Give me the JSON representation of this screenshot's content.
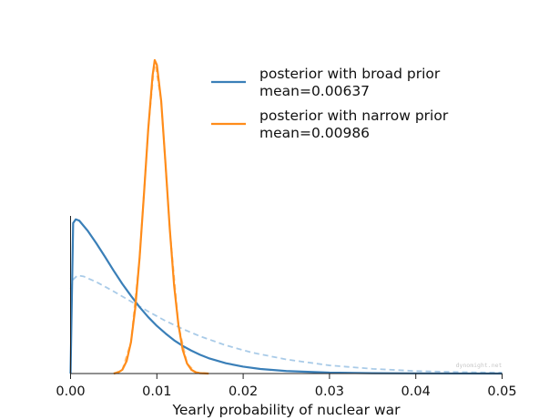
{
  "chart_data": {
    "type": "line",
    "title": "",
    "xlabel": "Yearly probability of nuclear war",
    "ylabel": "",
    "xlim": [
      0.0,
      0.05
    ],
    "ylim": [
      0,
      1
    ],
    "y_scale": "relative density (no y-axis shown)",
    "xticks": [
      "0.00",
      "0.01",
      "0.02",
      "0.03",
      "0.04",
      "0.05"
    ],
    "grid": false,
    "legend_position": "top-right",
    "series": [
      {
        "name": "posterior with broad prior\nmean=0.00637",
        "legend_line1": "posterior with broad prior",
        "legend_line2": "mean=0.00637",
        "color": "#3a7fb8",
        "style": "solid",
        "x": [
          0.0,
          0.0003,
          0.0006,
          0.001,
          0.002,
          0.003,
          0.004,
          0.005,
          0.006,
          0.007,
          0.008,
          0.009,
          0.01,
          0.011,
          0.012,
          0.013,
          0.014,
          0.015,
          0.016,
          0.018,
          0.02,
          0.022,
          0.025,
          0.03,
          0.035,
          0.04,
          0.045,
          0.05
        ],
        "y": [
          0.0,
          0.48,
          0.492,
          0.488,
          0.455,
          0.415,
          0.372,
          0.328,
          0.286,
          0.248,
          0.212,
          0.18,
          0.152,
          0.128,
          0.106,
          0.088,
          0.073,
          0.06,
          0.049,
          0.033,
          0.022,
          0.0145,
          0.008,
          0.003,
          0.0012,
          0.0005,
          0.0002,
          0.0001
        ]
      },
      {
        "name": "posterior with narrow prior\nmean=0.00986",
        "legend_line1": "posterior with narrow prior",
        "legend_line2": "mean=0.00986",
        "color": "#ff8c1a",
        "style": "solid",
        "x": [
          0.005,
          0.0055,
          0.006,
          0.0065,
          0.007,
          0.0075,
          0.008,
          0.0085,
          0.009,
          0.0095,
          0.00975,
          0.01,
          0.0105,
          0.011,
          0.0115,
          0.012,
          0.0125,
          0.013,
          0.0135,
          0.014,
          0.0145,
          0.015,
          0.016
        ],
        "y": [
          0.0,
          0.003,
          0.012,
          0.04,
          0.1,
          0.21,
          0.37,
          0.57,
          0.78,
          0.95,
          1.0,
          0.985,
          0.87,
          0.67,
          0.46,
          0.28,
          0.155,
          0.075,
          0.032,
          0.012,
          0.004,
          0.001,
          0.0
        ]
      },
      {
        "name": "",
        "color": "#a9cbe8",
        "style": "dashed",
        "x": [
          0.0,
          0.0003,
          0.0008,
          0.0015,
          0.003,
          0.005,
          0.007,
          0.009,
          0.011,
          0.013,
          0.015,
          0.018,
          0.021,
          0.025,
          0.03,
          0.035,
          0.04,
          0.045,
          0.05
        ],
        "y": [
          0.27,
          0.3,
          0.313,
          0.31,
          0.292,
          0.262,
          0.23,
          0.198,
          0.168,
          0.142,
          0.119,
          0.09,
          0.067,
          0.045,
          0.026,
          0.015,
          0.008,
          0.0045,
          0.0025
        ]
      },
      {
        "name": "",
        "color": "#ffc27d",
        "style": "dashed",
        "x": [
          0.005,
          0.006,
          0.007,
          0.008,
          0.009,
          0.00975,
          0.0105,
          0.0115,
          0.0125,
          0.0135,
          0.0145,
          0.016
        ],
        "y": [
          0.0,
          0.012,
          0.1,
          0.37,
          0.78,
          1.0,
          0.87,
          0.46,
          0.155,
          0.032,
          0.004,
          0.0
        ]
      }
    ]
  },
  "watermark": "dynomight.net"
}
